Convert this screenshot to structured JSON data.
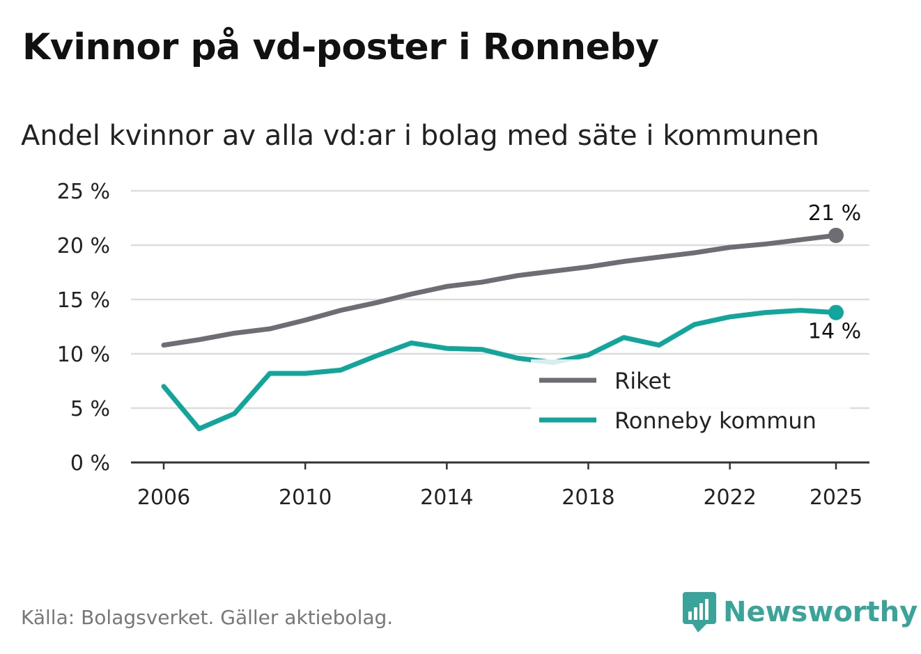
{
  "header": {
    "title": "Kvinnor på vd-poster i Ronneby",
    "subtitle": "Andel kvinnor av alla vd:ar i bolag med säte i kommunen"
  },
  "footer": {
    "source": "Källa: Bolagsverket. Gäller aktiebolag.",
    "brand": "Newsworthy",
    "brand_icon": "bar-chart-badge-icon"
  },
  "colors": {
    "riket": "#6e6d74",
    "ronneby": "#11a59b",
    "grid": "#dddddd",
    "axis": "#333333",
    "brand": "#3aa49a"
  },
  "chart_data": {
    "type": "line",
    "title": "Kvinnor på vd-poster i Ronneby",
    "subtitle": "Andel kvinnor av alla vd:ar i bolag med säte i kommunen",
    "xlabel": "",
    "ylabel": "",
    "x": [
      2006,
      2007,
      2008,
      2009,
      2010,
      2011,
      2012,
      2013,
      2014,
      2015,
      2016,
      2017,
      2018,
      2019,
      2020,
      2021,
      2022,
      2023,
      2024,
      2025
    ],
    "xlim": [
      2006,
      2025
    ],
    "ylim": [
      0,
      25
    ],
    "x_ticks": [
      2006,
      2010,
      2014,
      2018,
      2022,
      2025
    ],
    "x_tick_labels": [
      "2006",
      "2010",
      "2014",
      "2018",
      "2022",
      "2025"
    ],
    "y_ticks": [
      0,
      5,
      10,
      15,
      20,
      25
    ],
    "y_tick_labels": [
      "0 %",
      "5 %",
      "10 %",
      "15 %",
      "20 %",
      "25 %"
    ],
    "grid": true,
    "legend_position": "bottom-right",
    "series": [
      {
        "name": "Riket",
        "values": [
          10.8,
          11.3,
          11.9,
          12.3,
          13.1,
          14.0,
          14.7,
          15.5,
          16.2,
          16.6,
          17.2,
          17.6,
          18.0,
          18.5,
          18.9,
          19.3,
          19.8,
          20.1,
          20.5,
          20.9
        ],
        "end_label": "21 %"
      },
      {
        "name": "Ronneby kommun",
        "values": [
          7.0,
          3.1,
          4.5,
          8.2,
          8.2,
          8.5,
          9.8,
          11.0,
          10.5,
          10.4,
          9.6,
          9.2,
          9.9,
          11.5,
          10.8,
          12.7,
          13.4,
          13.8,
          14.0,
          13.8
        ],
        "end_label": "14 %"
      }
    ]
  }
}
